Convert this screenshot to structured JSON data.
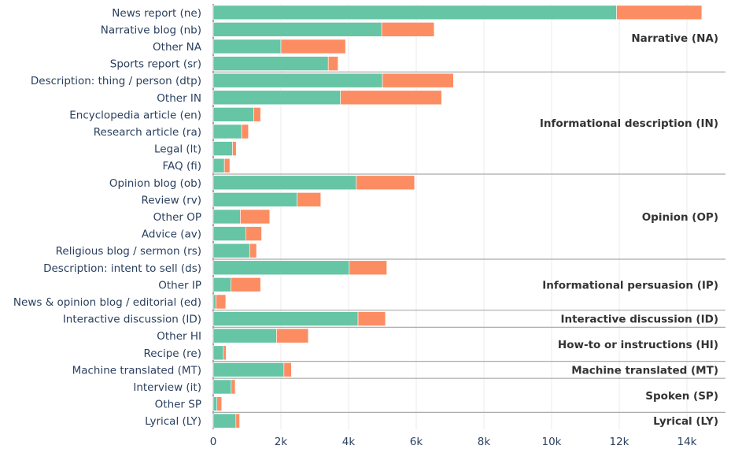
{
  "chart_data": {
    "type": "bar",
    "orientation": "horizontal",
    "stacked": true,
    "xlim": [
      0,
      15000
    ],
    "xticks": [
      0,
      2000,
      4000,
      6000,
      8000,
      10000,
      12000,
      14000
    ],
    "xtick_labels": [
      "0",
      "2k",
      "4k",
      "6k",
      "8k",
      "10k",
      "12k",
      "14k"
    ],
    "grid": true,
    "series_colors": [
      "#66c5a5",
      "#fc8d62"
    ],
    "categories": [
      "News report (ne)",
      "Narrative blog (nb)",
      "Other NA",
      "Sports report (sr)",
      "Description: thing / person (dtp)",
      "Other IN",
      "Encyclopedia article (en)",
      "Research article (ra)",
      "Legal (lt)",
      "FAQ (fi)",
      "Opinion blog (ob)",
      "Review (rv)",
      "Other OP",
      "Advice (av)",
      "Religious blog / sermon (rs)",
      "Description: intent to sell (ds)",
      "Other IP",
      "News & opinion blog / editorial (ed)",
      "Interactive discussion (ID)",
      "Other HI",
      "Recipe (re)",
      "Machine translated (MT)",
      "Interview (it)",
      "Other SP",
      "Lyrical (LY)"
    ],
    "series": [
      {
        "values": [
          11920,
          4980,
          2000,
          3400,
          5000,
          3760,
          1200,
          840,
          570,
          330,
          4230,
          2480,
          800,
          960,
          1080,
          4020,
          520,
          80,
          4280,
          1870,
          300,
          2090,
          530,
          110,
          670
        ]
      },
      {
        "values": [
          2520,
          1550,
          1910,
          290,
          2100,
          2990,
          200,
          200,
          110,
          160,
          1720,
          700,
          870,
          470,
          200,
          1110,
          880,
          290,
          810,
          940,
          80,
          220,
          120,
          140,
          110
        ]
      }
    ],
    "groups": [
      {
        "label": "Narrative (NA)",
        "start": 0,
        "end": 3
      },
      {
        "label": "Informational description (IN)",
        "start": 4,
        "end": 9
      },
      {
        "label": "Opinion (OP)",
        "start": 10,
        "end": 14
      },
      {
        "label": "Informational persuasion (IP)",
        "start": 15,
        "end": 17
      },
      {
        "label": "Interactive discussion (ID)",
        "start": 18,
        "end": 18
      },
      {
        "label": "How-to or instructions (HI)",
        "start": 19,
        "end": 20
      },
      {
        "label": "Machine translated (MT)",
        "start": 21,
        "end": 21
      },
      {
        "label": "Spoken (SP)",
        "start": 22,
        "end": 23
      },
      {
        "label": "Lyrical (LY)",
        "start": 24,
        "end": 24
      }
    ]
  }
}
